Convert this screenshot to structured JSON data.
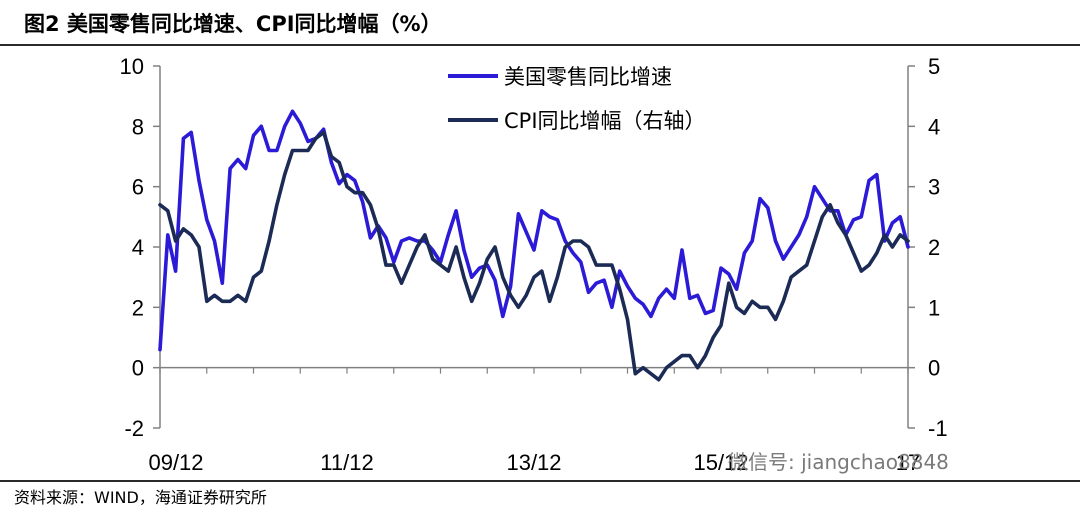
{
  "header": {
    "title": "图2  美国零售同比增速、CPI同比增幅（%）"
  },
  "footer": {
    "source": "资料来源：WIND，海通证券研究所",
    "watermark": "微信号: jiangchao8848"
  },
  "colors": {
    "retail": "#2b1bd6",
    "cpi": "#1b2b55",
    "axis": "#808080"
  },
  "chart_data": {
    "type": "line",
    "title": "",
    "xlabel": "",
    "ylabel": "",
    "x_ticks": [
      "09/12",
      "11/12",
      "13/12",
      "15/12",
      "17"
    ],
    "x_range": [
      "2009-12",
      "2017-12"
    ],
    "y_left_range": [
      -2,
      10
    ],
    "y_left_ticks": [
      -2,
      0,
      2,
      4,
      6,
      8,
      10
    ],
    "y_right_range": [
      -1,
      5
    ],
    "y_right_ticks": [
      -1,
      0,
      1,
      2,
      3,
      4,
      5
    ],
    "grid": false,
    "legend_position": "top-center",
    "series": [
      {
        "name": "美国零售同比增速",
        "axis": "left",
        "x": [
          "2009-12",
          "2010-01",
          "2010-02",
          "2010-03",
          "2010-04",
          "2010-05",
          "2010-06",
          "2010-07",
          "2010-08",
          "2010-09",
          "2010-10",
          "2010-11",
          "2010-12",
          "2011-01",
          "2011-02",
          "2011-03",
          "2011-04",
          "2011-05",
          "2011-06",
          "2011-07",
          "2011-08",
          "2011-09",
          "2011-10",
          "2011-11",
          "2011-12",
          "2012-01",
          "2012-02",
          "2012-03",
          "2012-04",
          "2012-05",
          "2012-06",
          "2012-07",
          "2012-08",
          "2012-09",
          "2012-10",
          "2012-11",
          "2012-12",
          "2013-01",
          "2013-02",
          "2013-03",
          "2013-04",
          "2013-05",
          "2013-06",
          "2013-07",
          "2013-08",
          "2013-09",
          "2013-10",
          "2013-11",
          "2013-12",
          "2014-01",
          "2014-02",
          "2014-03",
          "2014-04",
          "2014-05",
          "2014-06",
          "2014-07",
          "2014-08",
          "2014-09",
          "2014-10",
          "2014-11",
          "2014-12",
          "2015-01",
          "2015-02",
          "2015-03",
          "2015-04",
          "2015-05",
          "2015-06",
          "2015-07",
          "2015-08",
          "2015-09",
          "2015-10",
          "2015-11",
          "2015-12",
          "2016-01",
          "2016-02",
          "2016-03",
          "2016-04",
          "2016-05",
          "2016-06",
          "2016-07",
          "2016-08",
          "2016-09",
          "2016-10",
          "2016-11",
          "2016-12",
          "2017-01",
          "2017-02",
          "2017-03",
          "2017-04",
          "2017-05",
          "2017-06",
          "2017-07",
          "2017-08",
          "2017-09",
          "2017-10",
          "2017-11",
          "2017-12"
        ],
        "values": [
          0.6,
          4.4,
          3.2,
          7.6,
          7.8,
          6.2,
          4.9,
          4.2,
          2.8,
          6.6,
          6.9,
          6.6,
          7.7,
          8.0,
          7.2,
          7.2,
          8.0,
          8.5,
          8.1,
          7.5,
          7.6,
          7.9,
          6.8,
          6.1,
          6.4,
          6.2,
          5.5,
          4.3,
          4.7,
          4.3,
          3.5,
          4.2,
          4.3,
          4.2,
          4.2,
          3.9,
          3.5,
          4.4,
          5.2,
          3.9,
          3.0,
          3.3,
          3.4,
          2.9,
          1.7,
          2.7,
          5.1,
          4.5,
          3.9,
          5.2,
          5.0,
          4.9,
          4.2,
          3.8,
          3.5,
          2.5,
          2.8,
          2.9,
          2.0,
          3.2,
          2.7,
          2.3,
          2.1,
          1.7,
          2.3,
          2.6,
          2.3,
          3.9,
          2.3,
          2.4,
          1.8,
          1.9,
          3.3,
          3.1,
          2.6,
          3.8,
          4.2,
          5.6,
          5.3,
          4.2,
          3.6,
          4.0,
          4.4,
          5.0,
          6.0,
          5.6,
          5.2,
          5.2,
          4.4,
          4.9,
          5.0,
          6.2,
          6.4,
          4.2,
          4.8,
          5.0,
          4.0
        ]
      },
      {
        "name": "CPI同比增幅（右轴）",
        "axis": "right",
        "x": [
          "2009-12",
          "2010-01",
          "2010-02",
          "2010-03",
          "2010-04",
          "2010-05",
          "2010-06",
          "2010-07",
          "2010-08",
          "2010-09",
          "2010-10",
          "2010-11",
          "2010-12",
          "2011-01",
          "2011-02",
          "2011-03",
          "2011-04",
          "2011-05",
          "2011-06",
          "2011-07",
          "2011-08",
          "2011-09",
          "2011-10",
          "2011-11",
          "2011-12",
          "2012-01",
          "2012-02",
          "2012-03",
          "2012-04",
          "2012-05",
          "2012-06",
          "2012-07",
          "2012-08",
          "2012-09",
          "2012-10",
          "2012-11",
          "2012-12",
          "2013-01",
          "2013-02",
          "2013-03",
          "2013-04",
          "2013-05",
          "2013-06",
          "2013-07",
          "2013-08",
          "2013-09",
          "2013-10",
          "2013-11",
          "2013-12",
          "2014-01",
          "2014-02",
          "2014-03",
          "2014-04",
          "2014-05",
          "2014-06",
          "2014-07",
          "2014-08",
          "2014-09",
          "2014-10",
          "2014-11",
          "2014-12",
          "2015-01",
          "2015-02",
          "2015-03",
          "2015-04",
          "2015-05",
          "2015-06",
          "2015-07",
          "2015-08",
          "2015-09",
          "2015-10",
          "2015-11",
          "2015-12",
          "2016-01",
          "2016-02",
          "2016-03",
          "2016-04",
          "2016-05",
          "2016-06",
          "2016-07",
          "2016-08",
          "2016-09",
          "2016-10",
          "2016-11",
          "2016-12",
          "2017-01",
          "2017-02",
          "2017-03",
          "2017-04",
          "2017-05",
          "2017-06",
          "2017-07",
          "2017-08",
          "2017-09",
          "2017-10",
          "2017-11",
          "2017-12"
        ],
        "values": [
          2.7,
          2.6,
          2.1,
          2.3,
          2.2,
          2.0,
          1.1,
          1.2,
          1.1,
          1.1,
          1.2,
          1.1,
          1.5,
          1.6,
          2.1,
          2.7,
          3.2,
          3.6,
          3.6,
          3.6,
          3.8,
          3.9,
          3.5,
          3.4,
          3.0,
          2.9,
          2.9,
          2.7,
          2.3,
          1.7,
          1.7,
          1.4,
          1.7,
          2.0,
          2.2,
          1.8,
          1.7,
          1.6,
          2.0,
          1.5,
          1.1,
          1.4,
          1.8,
          2.0,
          1.5,
          1.2,
          1.0,
          1.2,
          1.5,
          1.6,
          1.1,
          1.5,
          2.0,
          2.1,
          2.1,
          2.0,
          1.7,
          1.7,
          1.7,
          1.3,
          0.8,
          -0.1,
          0.0,
          -0.1,
          -0.2,
          0.0,
          0.1,
          0.2,
          0.2,
          0.0,
          0.2,
          0.5,
          0.7,
          1.4,
          1.0,
          0.9,
          1.1,
          1.0,
          1.0,
          0.8,
          1.1,
          1.5,
          1.6,
          1.7,
          2.1,
          2.5,
          2.7,
          2.4,
          2.2,
          1.9,
          1.6,
          1.7,
          1.9,
          2.2,
          2.0,
          2.2,
          2.1
        ]
      }
    ]
  }
}
